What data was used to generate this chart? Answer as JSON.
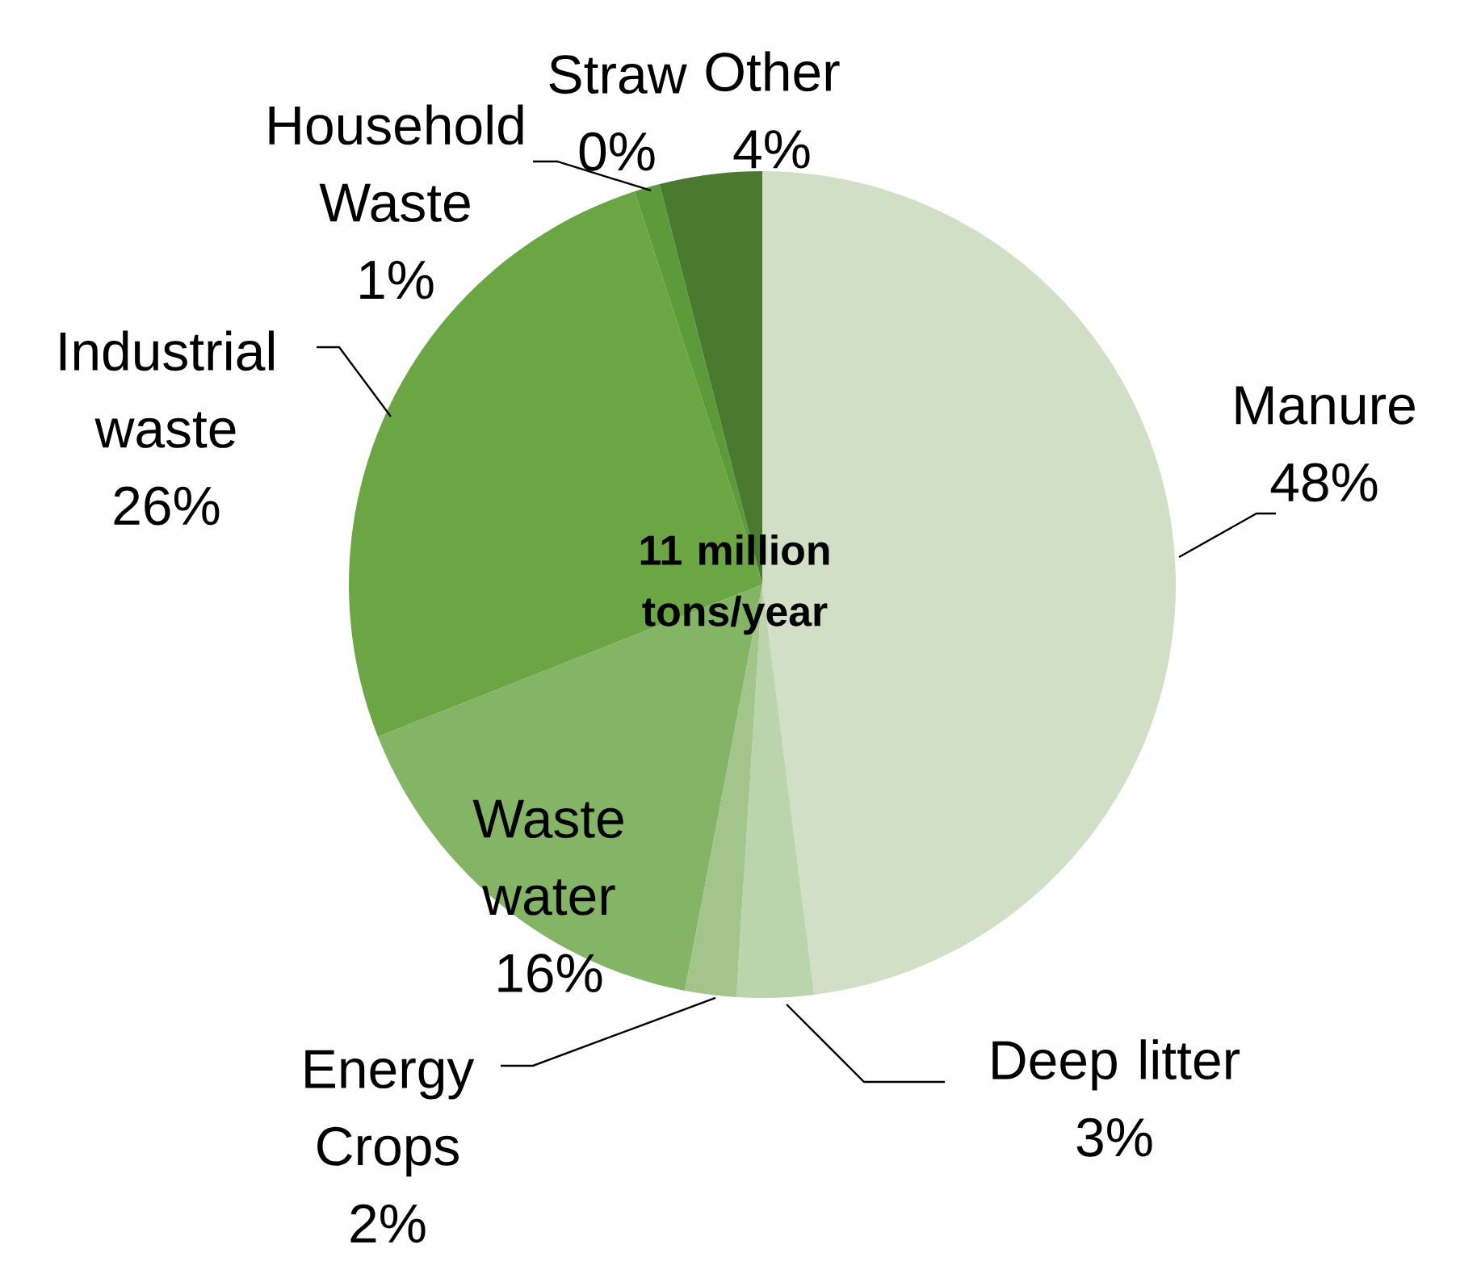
{
  "chart_data": {
    "type": "pie",
    "categories": [
      "Manure",
      "Deep litter",
      "Energy Crops",
      "Waste water",
      "Industrial waste",
      "Household Waste",
      "Straw",
      "Other"
    ],
    "values": [
      48,
      3,
      2,
      16,
      26,
      1,
      0,
      4
    ],
    "value_labels": [
      "48%",
      "3%",
      "2%",
      "16%",
      "26%",
      "1%",
      "0%",
      "4%"
    ],
    "colors": [
      "#d0dfc6",
      "#bcd4ab",
      "#a3c58c",
      "#84b567",
      "#6ca644",
      "#5c9a3a",
      "#4f8a32",
      "#4a7a2f"
    ],
    "annotations": [
      "11 million tons/year"
    ]
  }
}
